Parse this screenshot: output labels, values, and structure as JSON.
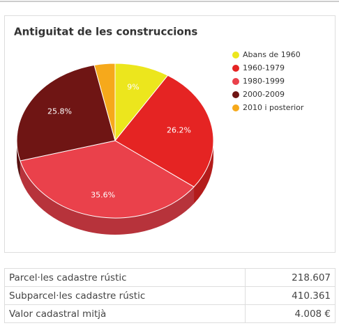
{
  "chart_data": {
    "type": "pie",
    "title": "Antiguitat de les construccions",
    "categories": [
      "Abans de 1960",
      "1960-1979",
      "1980-1999",
      "2000-2009",
      "2010 i posterior"
    ],
    "values": [
      9,
      26.2,
      35.6,
      25.8,
      3.4
    ],
    "value_labels": [
      "9%",
      "26.2%",
      "35.6%",
      "25.8%",
      null
    ],
    "colors": [
      "#ece61d",
      "#e52423",
      "#ea414b",
      "#6f1514",
      "#f6a91b"
    ],
    "legend": "right"
  },
  "table": {
    "rows": [
      [
        "Parcel·les cadastre rústic",
        "218.607"
      ],
      [
        "Subparcel·les cadastre rústic",
        "410.361"
      ],
      [
        "Valor cadastral mitjà",
        "4.008 €"
      ]
    ]
  }
}
